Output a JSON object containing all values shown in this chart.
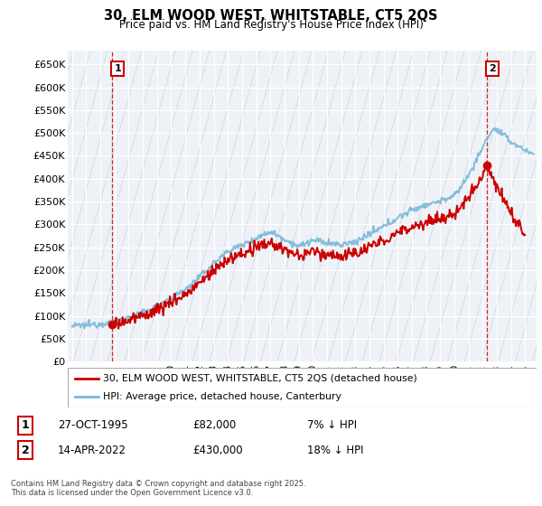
{
  "title": "30, ELM WOOD WEST, WHITSTABLE, CT5 2QS",
  "subtitle": "Price paid vs. HM Land Registry's House Price Index (HPI)",
  "ylabel_ticks": [
    "£0",
    "£50K",
    "£100K",
    "£150K",
    "£200K",
    "£250K",
    "£300K",
    "£350K",
    "£400K",
    "£450K",
    "£500K",
    "£550K",
    "£600K",
    "£650K"
  ],
  "ytick_values": [
    0,
    50000,
    100000,
    150000,
    200000,
    250000,
    300000,
    350000,
    400000,
    450000,
    500000,
    550000,
    600000,
    650000
  ],
  "ylim": [
    0,
    680000
  ],
  "xlim_start": 1992.7,
  "xlim_end": 2025.8,
  "sale1_date": 1995.82,
  "sale1_price": 82000,
  "sale2_date": 2022.28,
  "sale2_price": 430000,
  "legend_line1": "30, ELM WOOD WEST, WHITSTABLE, CT5 2QS (detached house)",
  "legend_line2": "HPI: Average price, detached house, Canterbury",
  "annotation1_date": "27-OCT-1995",
  "annotation1_price": "£82,000",
  "annotation1_hpi": "7% ↓ HPI",
  "annotation2_date": "14-APR-2022",
  "annotation2_price": "£430,000",
  "annotation2_hpi": "18% ↓ HPI",
  "copyright_text": "Contains HM Land Registry data © Crown copyright and database right 2025.\nThis data is licensed under the Open Government Licence v3.0.",
  "price_line_color": "#cc0000",
  "hpi_line_color": "#7ab8d9",
  "grid_color": "#d8e4f0",
  "annotation_box_color": "#cc0000",
  "dashed_line_color": "#cc0000",
  "bg_color": "#eef2f7",
  "hatch_color": "#ccd5e0"
}
